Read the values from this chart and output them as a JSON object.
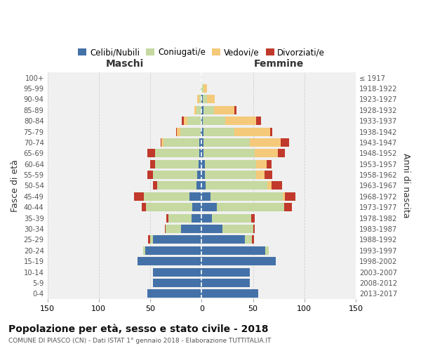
{
  "age_groups": [
    "0-4",
    "5-9",
    "10-14",
    "15-19",
    "20-24",
    "25-29",
    "30-34",
    "35-39",
    "40-44",
    "45-49",
    "50-54",
    "55-59",
    "60-64",
    "65-69",
    "70-74",
    "75-79",
    "80-84",
    "85-89",
    "90-94",
    "95-99",
    "100+"
  ],
  "birth_years": [
    "2013-2017",
    "2008-2012",
    "2003-2007",
    "1998-2002",
    "1993-1997",
    "1988-1992",
    "1983-1987",
    "1978-1982",
    "1973-1977",
    "1968-1972",
    "1963-1967",
    "1958-1962",
    "1953-1957",
    "1948-1952",
    "1943-1947",
    "1938-1942",
    "1933-1937",
    "1928-1932",
    "1923-1927",
    "1918-1922",
    "≤ 1917"
  ],
  "males_celibi": [
    53,
    47,
    47,
    62,
    55,
    47,
    20,
    10,
    9,
    12,
    5,
    4,
    3,
    2,
    2,
    1,
    0,
    0,
    0,
    0,
    0
  ],
  "males_coniugati": [
    0,
    0,
    0,
    0,
    2,
    3,
    15,
    22,
    45,
    44,
    38,
    43,
    42,
    43,
    35,
    20,
    14,
    5,
    2,
    1,
    0
  ],
  "males_vedovi": [
    0,
    0,
    0,
    0,
    0,
    0,
    0,
    0,
    0,
    0,
    0,
    0,
    0,
    0,
    2,
    3,
    3,
    2,
    2,
    0,
    0
  ],
  "males_divorziati": [
    0,
    0,
    0,
    0,
    0,
    2,
    1,
    2,
    4,
    10,
    4,
    6,
    5,
    8,
    1,
    1,
    2,
    0,
    0,
    0,
    0
  ],
  "females_nubili": [
    55,
    47,
    47,
    72,
    62,
    42,
    20,
    10,
    15,
    9,
    4,
    3,
    3,
    2,
    2,
    2,
    1,
    2,
    1,
    0,
    0
  ],
  "females_coniugate": [
    0,
    0,
    0,
    0,
    3,
    7,
    30,
    38,
    65,
    70,
    60,
    50,
    50,
    50,
    45,
    30,
    22,
    10,
    4,
    2,
    0
  ],
  "females_vedove": [
    0,
    0,
    0,
    0,
    0,
    0,
    0,
    0,
    0,
    2,
    4,
    8,
    10,
    22,
    30,
    35,
    30,
    20,
    8,
    3,
    0
  ],
  "females_divorziate": [
    0,
    0,
    0,
    0,
    0,
    2,
    2,
    4,
    8,
    10,
    10,
    8,
    5,
    7,
    8,
    2,
    5,
    2,
    0,
    0,
    0
  ],
  "colors": {
    "celibi": "#4472a8",
    "coniugati": "#c5d9a0",
    "vedovi": "#f5c97a",
    "divorziati": "#c0392b"
  },
  "title": "Popolazione per età, sesso e stato civile - 2018",
  "subtitle": "COMUNE DI PIASCO (CN) - Dati ISTAT 1° gennaio 2018 - Elaborazione TUTTITALIA.IT",
  "xlabel_left": "Maschi",
  "xlabel_right": "Femmine",
  "ylabel_left": "Fasce di età",
  "ylabel_right": "Anni di nascita",
  "xlim": 150,
  "background_color": "#ffffff",
  "plot_bg": "#f0f0f0"
}
